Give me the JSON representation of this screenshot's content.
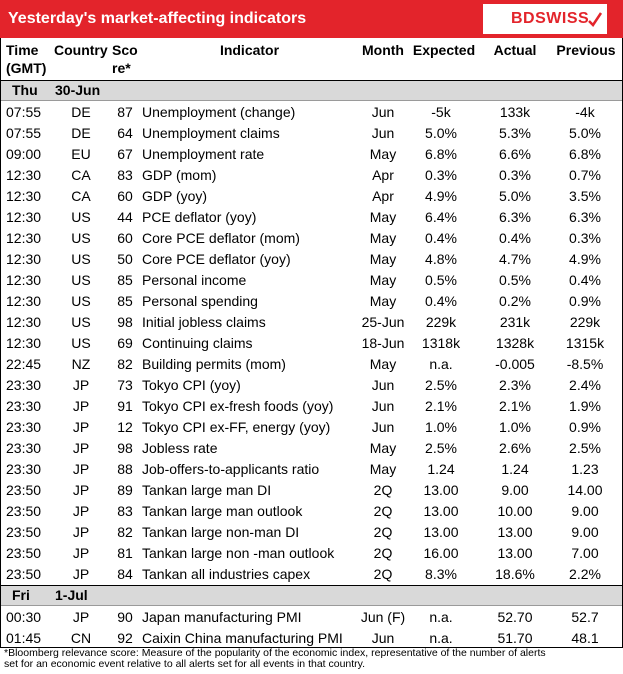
{
  "header": {
    "title": "Yesterday's market-affecting indicators",
    "logo": "BDSWISS"
  },
  "table": {
    "columns": [
      "Time (GMT)",
      "Country",
      "Score*",
      "Indicator",
      "Month",
      "Expected",
      "Actual",
      "Previous"
    ],
    "days": [
      {
        "day": "Thu",
        "date": "30-Jun",
        "rows": [
          [
            "07:55",
            "DE",
            "87",
            "Unemployment (change)",
            "Jun",
            "-5k",
            "133k",
            "-4k"
          ],
          [
            "07:55",
            "DE",
            "64",
            "Unemployment claims",
            "Jun",
            "5.0%",
            "5.3%",
            "5.0%"
          ],
          [
            "09:00",
            "EU",
            "67",
            "Unemployment rate",
            "May",
            "6.8%",
            "6.6%",
            "6.8%"
          ],
          [
            "12:30",
            "CA",
            "83",
            "GDP (mom)",
            "Apr",
            "0.3%",
            "0.3%",
            "0.7%"
          ],
          [
            "12:30",
            "CA",
            "60",
            "GDP (yoy)",
            "Apr",
            "4.9%",
            "5.0%",
            "3.5%"
          ],
          [
            "12:30",
            "US",
            "44",
            "PCE deflator (yoy)",
            "May",
            "6.4%",
            "6.3%",
            "6.3%"
          ],
          [
            "12:30",
            "US",
            "60",
            "Core PCE deflator (mom)",
            "May",
            "0.4%",
            "0.4%",
            "0.3%"
          ],
          [
            "12:30",
            "US",
            "50",
            "Core PCE deflator (yoy)",
            "May",
            "4.8%",
            "4.7%",
            "4.9%"
          ],
          [
            "12:30",
            "US",
            "85",
            "Personal income",
            "May",
            "0.5%",
            "0.5%",
            "0.4%"
          ],
          [
            "12:30",
            "US",
            "85",
            "Personal spending",
            "May",
            "0.4%",
            "0.2%",
            "0.9%"
          ],
          [
            "12:30",
            "US",
            "98",
            "Initial jobless claims",
            "25-Jun",
            "229k",
            "231k",
            "229k"
          ],
          [
            "12:30",
            "US",
            "69",
            "Continuing claims",
            "18-Jun",
            "1318k",
            "1328k",
            "1315k"
          ],
          [
            "22:45",
            "NZ",
            "82",
            "Building permits (mom)",
            "May",
            "n.a.",
            "-0.005",
            "-8.5%"
          ],
          [
            "23:30",
            "JP",
            "73",
            "Tokyo CPI (yoy)",
            "Jun",
            "2.5%",
            "2.3%",
            "2.4%"
          ],
          [
            "23:30",
            "JP",
            "91",
            "Tokyo CPI ex-fresh foods (yoy)",
            "Jun",
            "2.1%",
            "2.1%",
            "1.9%"
          ],
          [
            "23:30",
            "JP",
            "12",
            "Tokyo CPI ex-FF, energy (yoy)",
            "Jun",
            "1.0%",
            "1.0%",
            "0.9%"
          ],
          [
            "23:30",
            "JP",
            "98",
            "Jobless rate",
            "May",
            "2.5%",
            "2.6%",
            "2.5%"
          ],
          [
            "23:30",
            "JP",
            "88",
            "Job-offers-to-applicants ratio",
            "May",
            "1.24",
            "1.24",
            "1.23"
          ],
          [
            "23:50",
            "JP",
            "89",
            "Tankan large man DI",
            "2Q",
            "13.00",
            "9.00",
            "14.00"
          ],
          [
            "23:50",
            "JP",
            "83",
            "Tankan large man outlook",
            "2Q",
            "13.00",
            "10.00",
            "9.00"
          ],
          [
            "23:50",
            "JP",
            "82",
            "Tankan large non-man DI",
            "2Q",
            "13.00",
            "13.00",
            "9.00"
          ],
          [
            "23:50",
            "JP",
            "81",
            "Tankan large non -man outlook",
            "2Q",
            "16.00",
            "13.00",
            "7.00"
          ],
          [
            "23:50",
            "JP",
            "84",
            "Tankan all industries capex",
            "2Q",
            "8.3%",
            "18.6%",
            "2.2%"
          ]
        ]
      },
      {
        "day": "Fri",
        "date": "1-Jul",
        "rows": [
          [
            "00:30",
            "JP",
            "90",
            "Japan manufacturing PMI",
            "Jun (F)",
            "n.a.",
            "52.70",
            "52.7"
          ],
          [
            "01:45",
            "CN",
            "92",
            "Caixin China manufacturing PMI",
            "Jun",
            "n.a.",
            "51.70",
            "48.1"
          ]
        ]
      }
    ]
  },
  "footnote": "*Bloomberg relevance score:  Measure of the popularity of the economic index, representative of the number of alerts set for an economic event relative to all alerts set for all events in that country."
}
